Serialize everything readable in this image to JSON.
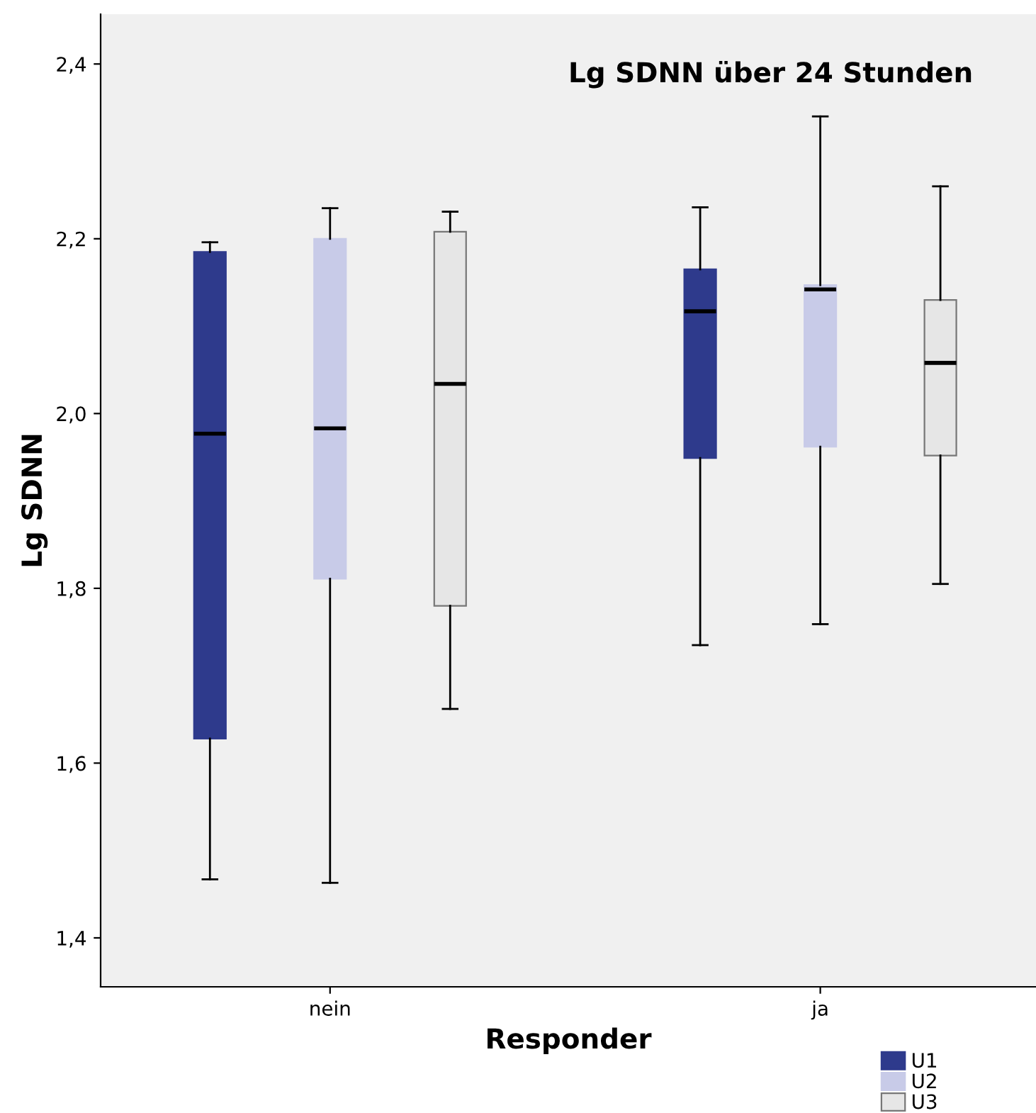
{
  "chart_data": {
    "type": "box",
    "title": "Lg SDNN über 24 Stunden",
    "xlabel": "Responder",
    "ylabel": "Lg SDNN",
    "categories": [
      "nein",
      "ja"
    ],
    "ylim": [
      1.344,
      2.457
    ],
    "yticks": [
      {
        "value": 1.4,
        "label": "1,4"
      },
      {
        "value": 1.6,
        "label": "1,6"
      },
      {
        "value": 1.8,
        "label": "1,8"
      },
      {
        "value": 2.0,
        "label": "2,0"
      },
      {
        "value": 2.2,
        "label": "2,2"
      },
      {
        "value": 2.4,
        "label": "2,4"
      }
    ],
    "grid": false,
    "legend": "bottom right",
    "series": [
      {
        "name": "U1",
        "color": "#2e3a8c",
        "boxes": [
          {
            "low": 1.467,
            "q1": 1.628,
            "median": 1.977,
            "q3": 2.185,
            "high": 2.196
          },
          {
            "low": 1.735,
            "q1": 1.949,
            "median": 2.117,
            "q3": 2.165,
            "high": 2.236
          }
        ]
      },
      {
        "name": "U2",
        "color": "#c8cbe8",
        "boxes": [
          {
            "low": 1.463,
            "q1": 1.811,
            "median": 1.983,
            "q3": 2.2,
            "high": 2.235
          },
          {
            "low": 1.759,
            "q1": 1.962,
            "median": 2.142,
            "q3": 2.147,
            "high": 2.34
          }
        ]
      },
      {
        "name": "U3",
        "color": "#e6e6e6",
        "boxes": [
          {
            "low": 1.662,
            "q1": 1.78,
            "median": 2.034,
            "q3": 2.208,
            "high": 2.231
          },
          {
            "low": 1.805,
            "q1": 1.952,
            "median": 2.058,
            "q3": 2.13,
            "high": 2.26
          }
        ]
      }
    ]
  }
}
